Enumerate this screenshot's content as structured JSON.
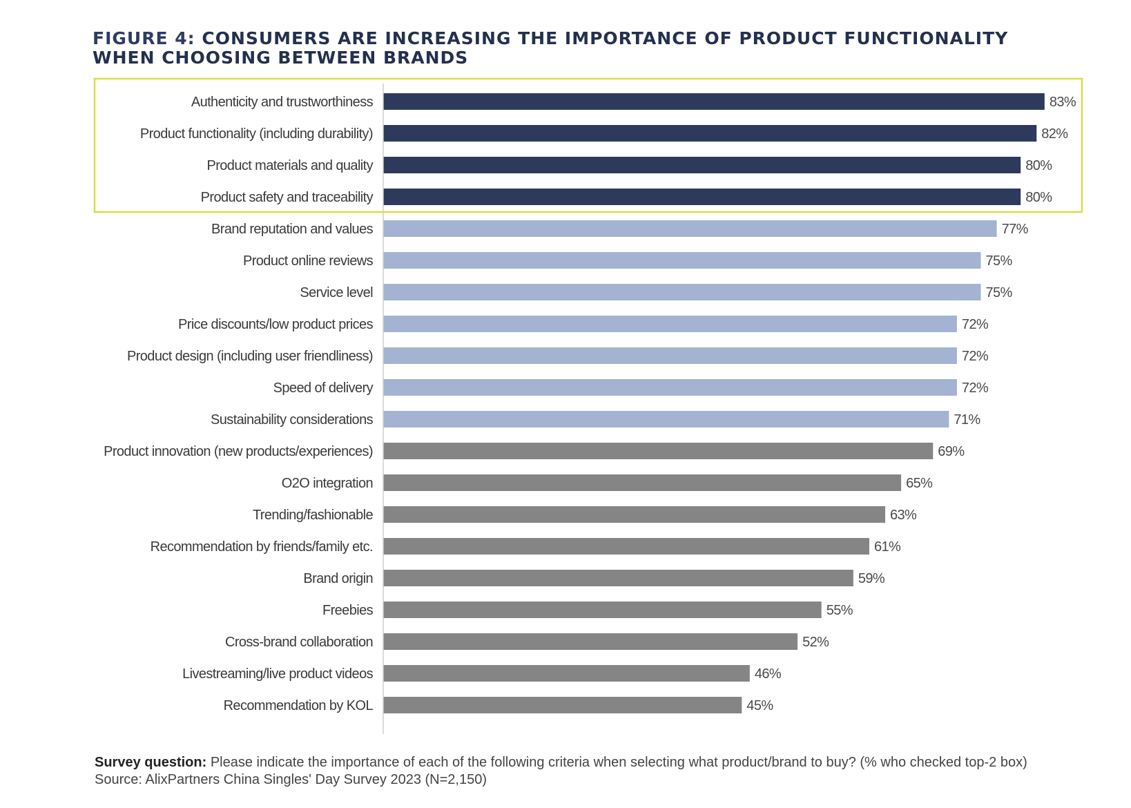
{
  "title": {
    "figure_label": "FIGURE 4:",
    "text": "CONSUMERS ARE INCREASING THE IMPORTANCE OF PRODUCT FUNCTIONALITY WHEN CHOOSING BETWEEN BRANDS"
  },
  "colors": {
    "highlight_bar": "#2e3a5c",
    "mid_bar": "#a3b3d1",
    "low_bar": "#858585",
    "highlight_box": "#d5e04a",
    "title": "#24304d"
  },
  "chart_data": {
    "type": "bar",
    "orientation": "horizontal",
    "xlim": [
      0,
      100
    ],
    "unit": "%",
    "grid": false,
    "categories": [
      "Authenticity and trustworthiness",
      "Product functionality (including durability)",
      "Product materials and quality",
      "Product safety and traceability",
      "Brand reputation and values",
      "Product online reviews",
      "Service level",
      "Price discounts/low product prices",
      "Product design (including user friendliness)",
      "Speed of delivery",
      "Sustainability considerations",
      "Product innovation (new products/experiences)",
      "O2O integration",
      "Trending/fashionable",
      "Recommendation by friends/family etc.",
      "Brand origin",
      "Freebies",
      "Cross-brand collaboration",
      "Livestreaming/live product videos",
      "Recommendation by KOL"
    ],
    "values": [
      83,
      82,
      80,
      80,
      77,
      75,
      75,
      72,
      72,
      72,
      71,
      69,
      65,
      63,
      61,
      59,
      55,
      52,
      46,
      45
    ],
    "labels": [
      "83%",
      "82%",
      "80%",
      "80%",
      "77%",
      "75%",
      "75%",
      "72%",
      "72%",
      "72%",
      "71%",
      "69%",
      "65%",
      "63%",
      "61%",
      "59%",
      "55%",
      "52%",
      "46%",
      "45%"
    ],
    "groups": [
      "top",
      "top",
      "top",
      "top",
      "mid",
      "mid",
      "mid",
      "mid",
      "mid",
      "mid",
      "mid",
      "low",
      "low",
      "low",
      "low",
      "low",
      "low",
      "low",
      "low",
      "low"
    ],
    "highlighted_group": "top"
  },
  "footer": {
    "question_label": "Survey question:",
    "question_text": " Please indicate the importance of each of the following criteria when selecting what product/brand to buy? (% who checked top-2 box)",
    "source": "Source: AlixPartners China Singles' Day Survey 2023 (N=2,150)"
  }
}
